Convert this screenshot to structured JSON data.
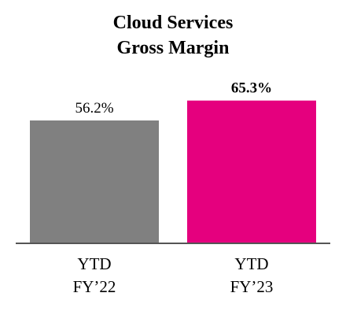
{
  "chart_data": {
    "type": "bar",
    "title_lines": [
      "Cloud Services",
      "Gross Margin"
    ],
    "categories": [
      [
        "YTD",
        "FY’22"
      ],
      [
        "YTD",
        "FY’23"
      ]
    ],
    "values": [
      56.2,
      65.3
    ],
    "value_labels": [
      "56.2%",
      "65.3%"
    ],
    "value_label_bold": [
      false,
      true
    ],
    "unit": "%",
    "ylim": [
      0,
      85
    ],
    "grid": false,
    "legend": "none",
    "colors": [
      "#808080",
      "#e5007e"
    ],
    "baseline_color": "#555555"
  }
}
